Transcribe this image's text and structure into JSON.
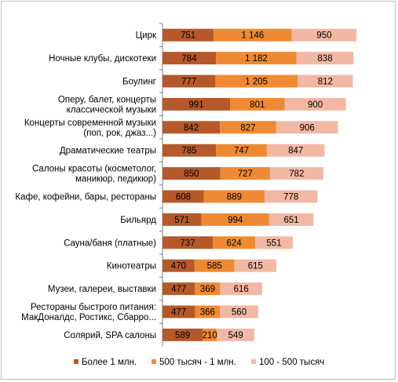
{
  "chart_data": {
    "type": "bar",
    "orientation": "horizontal",
    "stacked": true,
    "title": "",
    "xlabel": "",
    "ylabel": "",
    "grid": false,
    "legend_position": "bottom",
    "categories": [
      "Цирк",
      "Ночные клубы, дискотеки",
      "Боулинг",
      "Оперу, балет, концерты\nклассической музыки",
      "Концерты современной музыки\n(поп, рок, джаз...)",
      "Драматические театры",
      "Салоны красоты (косметолог,\nманикюр, педикюр)",
      "Кафе, кофейни, бары, рестораны",
      "Бильярд",
      "Сауна/баня (платные)",
      "Кинотеатры",
      "Музеи, галереи, выставки",
      "Рестораны быстрого питания:\nМакДоналдс, Ростикс, Сбарро...",
      "Солярий, SPA салоны"
    ],
    "series": [
      {
        "name": "Более 1 млн.",
        "color": "#b5592a",
        "values": [
          751,
          784,
          777,
          991,
          842,
          785,
          850,
          608,
          571,
          737,
          470,
          477,
          477,
          589
        ],
        "labels": [
          "751",
          "784",
          "777",
          "991",
          "842",
          "785",
          "850",
          "608",
          "571",
          "737",
          "470",
          "477",
          "477",
          "589"
        ]
      },
      {
        "name": "500 тысяч - 1 млн.",
        "color": "#ef8a33",
        "values": [
          1146,
          1182,
          1205,
          801,
          827,
          747,
          727,
          889,
          994,
          624,
          585,
          369,
          366,
          210
        ],
        "labels": [
          "1 146",
          "1 182",
          "1 205",
          "801",
          "827",
          "747",
          "727",
          "889",
          "994",
          "624",
          "585",
          "369",
          "366",
          "210"
        ]
      },
      {
        "name": "100 - 500 тысяч",
        "color": "#f2b8a4",
        "values": [
          950,
          838,
          812,
          900,
          906,
          847,
          782,
          778,
          651,
          551,
          615,
          616,
          560,
          549
        ],
        "labels": [
          "950",
          "838",
          "812",
          "900",
          "906",
          "847",
          "782",
          "778",
          "651",
          "551",
          "615",
          "616",
          "560",
          "549"
        ]
      }
    ]
  }
}
